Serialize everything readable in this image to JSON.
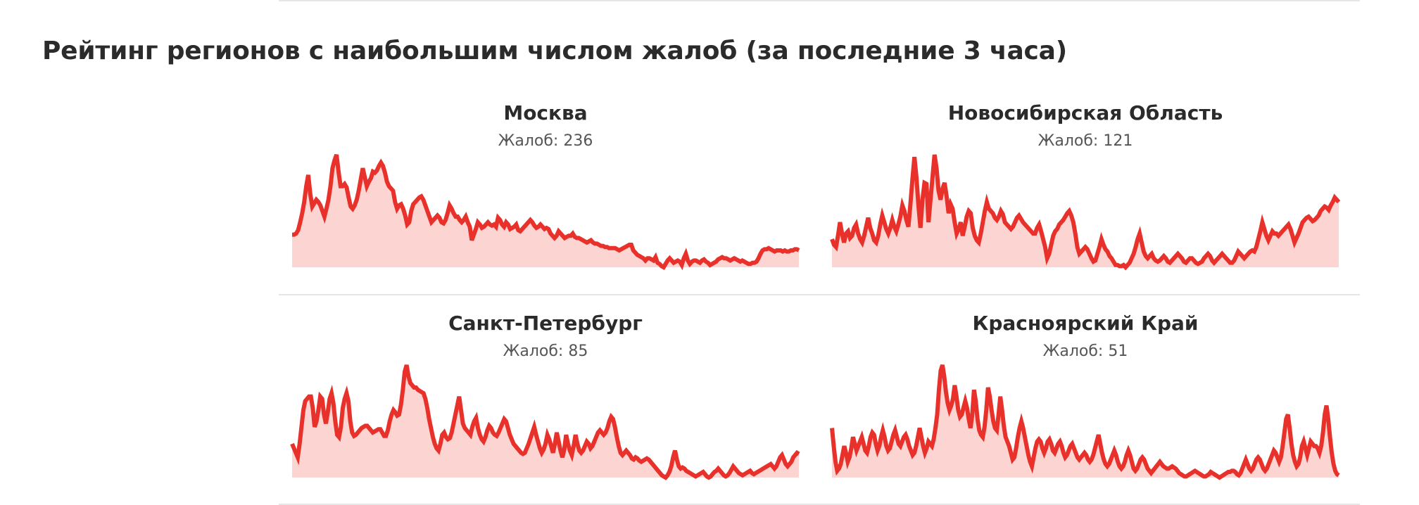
{
  "page": {
    "title": "Рейтинг регионов с наибольшим числом жалоб (за последние 3 часа)"
  },
  "colors": {
    "line": "#e8312a",
    "fill": "#fcd5d3",
    "text": "#2b2b2b",
    "subtext": "#555555",
    "rule": "#e6e6e6"
  },
  "chart_data": [
    {
      "type": "area",
      "title": "Москва",
      "subtitle": "Жалоб: 236",
      "grid": false,
      "ylim": [
        0,
        100
      ],
      "values": [
        29,
        29,
        30,
        33,
        40,
        48,
        58,
        72,
        82,
        65,
        54,
        57,
        60,
        58,
        55,
        50,
        45,
        52,
        60,
        72,
        88,
        95,
        100,
        85,
        72,
        72,
        74,
        71,
        62,
        54,
        52,
        55,
        60,
        68,
        78,
        88,
        80,
        72,
        76,
        79,
        85,
        84,
        86,
        90,
        93,
        90,
        84,
        76,
        72,
        70,
        68,
        58,
        52,
        55,
        56,
        52,
        46,
        38,
        40,
        50,
        56,
        58,
        60,
        62,
        63,
        60,
        55,
        50,
        45,
        40,
        42,
        44,
        46,
        44,
        40,
        39,
        42,
        48,
        55,
        52,
        48,
        45,
        45,
        42,
        40,
        42,
        45,
        40,
        36,
        24,
        29,
        34,
        40,
        38,
        35,
        36,
        38,
        40,
        38,
        37,
        38,
        36,
        44,
        42,
        38,
        36,
        40,
        38,
        34,
        35,
        36,
        38,
        33,
        32,
        34,
        36,
        38,
        40,
        42,
        40,
        37,
        35,
        36,
        38,
        36,
        34,
        35,
        34,
        30,
        28,
        26,
        28,
        32,
        30,
        28,
        26,
        27,
        28,
        28,
        30,
        27,
        26,
        26,
        25,
        24,
        23,
        22,
        23,
        24,
        22,
        21,
        21,
        20,
        19,
        19,
        18,
        18,
        17,
        17,
        17,
        17,
        16,
        15,
        16,
        17,
        18,
        19,
        20,
        20,
        15,
        13,
        11,
        10,
        9,
        8,
        6,
        8,
        8,
        7,
        6,
        9,
        4,
        3,
        1,
        0,
        3,
        6,
        8,
        6,
        4,
        5,
        6,
        5,
        2,
        8,
        12,
        6,
        3,
        5,
        6,
        6,
        5,
        4,
        6,
        7,
        5,
        4,
        2,
        3,
        4,
        5,
        7,
        8,
        9,
        8,
        8,
        7,
        6,
        7,
        8,
        7,
        6,
        5,
        6,
        5,
        4,
        3,
        3,
        4,
        4,
        5,
        8,
        12,
        15,
        16,
        16,
        17,
        16,
        15,
        14,
        15,
        15,
        15,
        14,
        15,
        14,
        14,
        15,
        15,
        16,
        16,
        15
      ]
    },
    {
      "type": "area",
      "title": "Новосибирская Область",
      "subtitle": "Жалоб: 121",
      "grid": false,
      "ylim": [
        0,
        100
      ],
      "values": [
        25,
        20,
        18,
        28,
        40,
        30,
        22,
        30,
        32,
        26,
        28,
        35,
        38,
        30,
        25,
        22,
        28,
        36,
        44,
        35,
        30,
        24,
        22,
        28,
        38,
        46,
        40,
        34,
        30,
        35,
        42,
        36,
        32,
        38,
        45,
        55,
        50,
        42,
        36,
        56,
        78,
        98,
        80,
        55,
        35,
        60,
        75,
        74,
        40,
        60,
        80,
        100,
        88,
        68,
        60,
        70,
        75,
        63,
        48,
        56,
        52,
        40,
        30,
        34,
        40,
        28,
        36,
        45,
        50,
        48,
        35,
        28,
        24,
        22,
        30,
        40,
        50,
        58,
        52,
        50,
        48,
        44,
        42,
        45,
        50,
        47,
        40,
        38,
        36,
        34,
        36,
        40,
        44,
        46,
        43,
        40,
        38,
        36,
        34,
        32,
        30,
        30,
        35,
        38,
        32,
        25,
        18,
        8,
        12,
        20,
        28,
        32,
        34,
        38,
        40,
        42,
        45,
        48,
        50,
        46,
        40,
        30,
        18,
        12,
        14,
        16,
        18,
        16,
        12,
        8,
        5,
        6,
        12,
        18,
        25,
        20,
        16,
        14,
        10,
        8,
        5,
        2,
        2,
        1,
        1,
        2,
        0,
        2,
        4,
        8,
        12,
        18,
        25,
        30,
        22,
        14,
        10,
        8,
        10,
        12,
        8,
        6,
        5,
        6,
        8,
        10,
        8,
        5,
        4,
        6,
        8,
        10,
        12,
        10,
        8,
        5,
        4,
        6,
        8,
        8,
        6,
        4,
        3,
        4,
        5,
        8,
        10,
        12,
        10,
        6,
        4,
        6,
        8,
        10,
        12,
        10,
        8,
        6,
        4,
        4,
        6,
        10,
        14,
        12,
        10,
        8,
        10,
        12,
        14,
        15,
        14,
        18,
        25,
        32,
        40,
        34,
        28,
        24,
        28,
        32,
        30,
        30,
        28,
        30,
        32,
        34,
        36,
        38,
        34,
        28,
        22,
        26,
        30,
        35,
        40,
        42,
        44,
        45,
        43,
        41,
        42,
        44,
        46,
        50,
        52,
        54,
        53,
        51,
        55,
        58,
        62,
        60,
        58
      ]
    },
    {
      "type": "area",
      "title": "Санкт-Петербург",
      "subtitle": "Жалоб: 85",
      "grid": false,
      "ylim": [
        0,
        100
      ],
      "values": [
        30,
        26,
        22,
        18,
        30,
        45,
        60,
        68,
        70,
        72,
        72,
        62,
        45,
        50,
        60,
        72,
        70,
        56,
        48,
        58,
        70,
        75,
        66,
        50,
        38,
        36,
        45,
        62,
        70,
        75,
        68,
        50,
        40,
        37,
        38,
        40,
        42,
        44,
        45,
        46,
        46,
        44,
        42,
        40,
        41,
        42,
        43,
        43,
        40,
        37,
        37,
        42,
        50,
        56,
        60,
        58,
        55,
        56,
        65,
        78,
        94,
        100,
        90,
        84,
        82,
        80,
        80,
        78,
        77,
        76,
        75,
        70,
        62,
        52,
        44,
        36,
        30,
        26,
        24,
        30,
        38,
        40,
        36,
        34,
        35,
        40,
        48,
        56,
        64,
        72,
        60,
        48,
        44,
        42,
        40,
        38,
        45,
        50,
        53,
        44,
        38,
        34,
        32,
        36,
        42,
        46,
        44,
        40,
        38,
        37,
        40,
        44,
        48,
        52,
        50,
        44,
        38,
        34,
        30,
        28,
        26,
        24,
        22,
        21,
        22,
        26,
        30,
        35,
        40,
        45,
        38,
        32,
        26,
        22,
        25,
        30,
        38,
        34,
        28,
        22,
        30,
        40,
        32,
        24,
        18,
        25,
        38,
        30,
        24,
        20,
        28,
        38,
        30,
        24,
        22,
        24,
        28,
        32,
        30,
        26,
        28,
        32,
        36,
        40,
        42,
        40,
        38,
        40,
        44,
        50,
        54,
        52,
        45,
        36,
        28,
        22,
        20,
        22,
        24,
        22,
        20,
        17,
        16,
        18,
        17,
        15,
        14,
        15,
        16,
        17,
        16,
        14,
        12,
        10,
        8,
        6,
        4,
        2,
        1,
        0,
        2,
        5,
        10,
        18,
        24,
        16,
        10,
        8,
        9,
        8,
        6,
        5,
        4,
        3,
        2,
        1,
        2,
        3,
        4,
        5,
        3,
        1,
        0,
        1,
        3,
        5,
        6,
        8,
        6,
        4,
        2,
        1,
        2,
        4,
        7,
        10,
        8,
        6,
        4,
        3,
        2,
        3,
        4,
        5,
        6,
        4,
        3,
        4,
        5,
        6,
        7,
        8,
        9,
        10,
        11,
        12,
        10,
        8,
        10,
        14,
        18,
        20,
        16,
        12,
        10,
        12,
        14,
        18,
        20,
        22,
        21
      ]
    },
    {
      "type": "area",
      "title": "Красноярский Край",
      "subtitle": "Жалоб: 51",
      "grid": false,
      "ylim": [
        0,
        100
      ],
      "values": [
        44,
        28,
        14,
        6,
        8,
        12,
        20,
        28,
        22,
        14,
        18,
        26,
        36,
        30,
        24,
        28,
        32,
        36,
        30,
        24,
        22,
        28,
        36,
        40,
        38,
        30,
        24,
        28,
        36,
        42,
        36,
        28,
        24,
        26,
        32,
        38,
        42,
        36,
        30,
        28,
        32,
        36,
        38,
        34,
        28,
        24,
        20,
        22,
        28,
        36,
        44,
        36,
        28,
        22,
        26,
        32,
        30,
        28,
        34,
        44,
        56,
        78,
        95,
        100,
        90,
        76,
        66,
        60,
        64,
        70,
        82,
        72,
        60,
        54,
        56,
        62,
        68,
        62,
        52,
        44,
        56,
        78,
        68,
        52,
        42,
        38,
        36,
        45,
        60,
        80,
        72,
        60,
        50,
        44,
        42,
        56,
        72,
        60,
        46,
        36,
        32,
        28,
        22,
        16,
        18,
        26,
        36,
        44,
        50,
        44,
        36,
        28,
        20,
        14,
        10,
        18,
        26,
        32,
        34,
        32,
        26,
        22,
        26,
        32,
        34,
        30,
        24,
        22,
        26,
        30,
        32,
        28,
        22,
        18,
        20,
        24,
        28,
        30,
        26,
        22,
        18,
        16,
        18,
        20,
        22,
        20,
        16,
        14,
        16,
        20,
        26,
        32,
        38,
        30,
        22,
        16,
        12,
        10,
        12,
        16,
        20,
        24,
        20,
        14,
        10,
        8,
        10,
        14,
        20,
        24,
        20,
        14,
        8,
        6,
        8,
        12,
        16,
        18,
        16,
        12,
        8,
        6,
        4,
        6,
        8,
        10,
        12,
        14,
        12,
        10,
        9,
        8,
        8,
        9,
        10,
        9,
        8,
        6,
        4,
        3,
        2,
        1,
        1,
        2,
        3,
        4,
        5,
        6,
        5,
        4,
        3,
        2,
        1,
        1,
        2,
        3,
        5,
        4,
        3,
        2,
        1,
        0,
        1,
        2,
        3,
        4,
        5,
        5,
        6,
        6,
        5,
        3,
        2,
        4,
        8,
        12,
        16,
        12,
        8,
        6,
        8,
        12,
        16,
        18,
        16,
        12,
        8,
        6,
        8,
        12,
        16,
        20,
        24,
        22,
        18,
        14,
        18,
        28,
        40,
        52,
        56,
        44,
        30,
        20,
        14,
        10,
        12,
        18,
        28,
        32,
        26,
        20,
        26,
        32,
        30,
        28,
        28,
        26,
        22,
        28,
        40,
        56,
        64,
        52,
        36,
        22,
        12,
        6,
        3,
        2
      ]
    }
  ]
}
